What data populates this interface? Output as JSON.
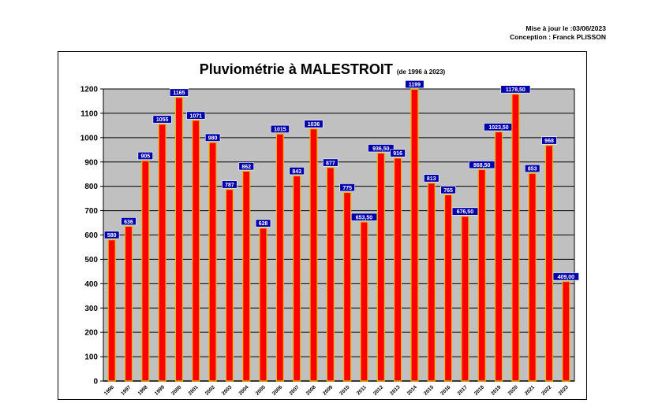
{
  "header": {
    "updated": "Mise à jour le :03/06/2023",
    "author": "Conception : Franck PLISSON"
  },
  "colors": {
    "bar": "#ff0000",
    "bar_edge": "#e8b800",
    "plot_bg": "#c0c0c0",
    "label_bg": "#0000aa",
    "label_text": "#ffffff"
  },
  "chart_data": {
    "type": "bar",
    "title": "Pluviométrie à MALESTROIT",
    "subtitle": "(de 1996 à 2023)",
    "xlabel": "",
    "ylabel": "",
    "ylim": [
      0,
      1200
    ],
    "yticks": [
      0,
      100,
      200,
      300,
      400,
      500,
      600,
      700,
      800,
      900,
      1000,
      1100,
      1200
    ],
    "grid": true,
    "legend": "none",
    "categories": [
      "1996",
      "1997",
      "1998",
      "1999",
      "2000",
      "2001",
      "2002",
      "2003",
      "2004",
      "2005",
      "2006",
      "2007",
      "2008",
      "2009",
      "2010",
      "2011",
      "2012",
      "2013",
      "2014",
      "2015",
      "2016",
      "2017",
      "2018",
      "2019",
      "2020",
      "2021",
      "2022",
      "2023"
    ],
    "values": [
      580,
      636,
      905,
      1055,
      1165,
      1071,
      980,
      787,
      862,
      628,
      1015,
      843,
      1036,
      877,
      775,
      653.5,
      936.5,
      916,
      1199,
      813,
      765,
      676.5,
      868.5,
      1023.5,
      1178.5,
      853,
      968,
      409
    ],
    "labels": [
      "580",
      "636",
      "905",
      "1055",
      "1165",
      "1071",
      "980",
      "787",
      "862",
      "628",
      "1015",
      "843",
      "1036",
      "877",
      "775",
      "653,50",
      "936,50",
      "916",
      "1199",
      "813",
      "765",
      "676,50",
      "868,50",
      "1023,50",
      "1178,50",
      "853",
      "968",
      "409,00"
    ]
  }
}
